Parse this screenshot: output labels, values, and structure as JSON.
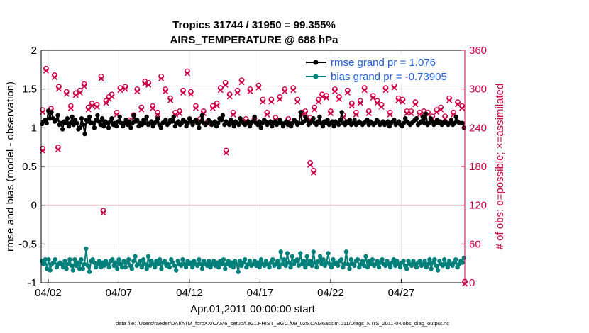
{
  "chart_data": {
    "type": "line",
    "title": "Tropics 31744 / 31950 = 99.355%",
    "subtitle": "AIRS_TEMPERATURE @ 688 hPa",
    "ylabel": "rmse and bias (model - observation)",
    "y2label": "# of obs: o=possible; ×=assimilated",
    "xlabel": "Apr.01,2011 00:00:00 start",
    "xlim": [
      1.5,
      31.5
    ],
    "ylim": [
      -1,
      2
    ],
    "y2lim": [
      0,
      360
    ],
    "x_ticks": [
      2,
      7,
      12,
      17,
      22,
      27
    ],
    "x_tick_labels": [
      "04/02",
      "04/07",
      "04/12",
      "04/17",
      "04/22",
      "04/27"
    ],
    "y_ticks": [
      -1,
      -0.5,
      0,
      0.5,
      1,
      1.5,
      2
    ],
    "y_tick_labels": [
      "-1",
      "-0.5",
      "0",
      "0.5",
      "1",
      "1.5",
      "2"
    ],
    "y2_ticks": [
      0,
      60,
      120,
      180,
      240,
      300,
      360
    ],
    "y2_tick_labels": [
      "0",
      "60",
      "120",
      "180",
      "240",
      "300",
      "360"
    ],
    "zero_line": 0,
    "legend": [
      {
        "label": "rmse grand pr = 1.076",
        "color": "#000000"
      },
      {
        "label": "bias grand pr = -0.73905",
        "color": "#00807a"
      }
    ],
    "series": [
      {
        "name": "rmse",
        "color": "#000000",
        "axis": "left",
        "values": [
          1.05,
          1.08,
          1.1,
          1.06,
          1.22,
          1.12,
          1.2,
          1.12,
          1.08,
          1.1,
          1.16,
          1.04,
          1.06,
          0.98,
          1.08,
          1.06,
          1.12,
          1.02,
          1.06,
          1.14,
          1.04,
          1.1,
          1.06,
          0.98,
          1.0,
          1.12,
          1.04,
          0.92,
          1.1,
          1.08,
          1.14,
          1.06,
          1.06,
          1.0,
          1.1,
          1.16,
          1.08,
          1.04,
          1.12,
          1.02,
          1.08,
          1.06,
          1.0,
          1.08,
          1.12,
          1.04,
          1.06,
          1.02,
          1.08,
          1.14,
          1.06,
          1.02,
          1.06,
          1.1,
          1.04,
          1.08,
          1.0,
          1.06,
          1.16,
          1.08,
          1.1,
          1.02,
          1.06,
          1.04,
          1.1,
          1.06,
          1.14,
          1.04,
          1.06,
          1.08,
          1.02,
          1.06,
          1.08,
          1.12,
          1.04,
          1.0,
          1.06,
          1.08,
          1.1,
          1.04,
          1.06,
          1.1,
          1.08,
          1.14,
          1.02,
          1.06,
          1.08,
          1.04,
          1.06,
          1.1,
          1.08,
          1.02,
          1.06,
          1.12,
          1.08,
          1.04,
          1.08,
          1.1,
          1.06,
          1.0,
          1.08,
          1.16,
          1.06,
          1.04,
          1.06,
          1.1,
          1.08,
          1.04,
          1.06,
          1.08,
          1.02,
          1.06,
          1.12,
          1.1,
          1.16,
          1.04,
          1.08,
          1.06,
          1.04,
          1.1,
          1.06,
          1.02,
          1.08,
          1.06,
          1.04,
          1.12,
          1.08,
          1.06,
          1.04,
          1.06,
          1.08,
          1.02,
          1.06,
          1.08,
          1.14,
          1.06,
          1.04,
          1.08,
          1.0,
          1.06,
          1.1,
          1.08,
          1.04,
          1.06,
          1.08,
          1.02,
          1.06,
          1.08,
          1.04,
          1.06,
          1.1,
          1.06,
          1.02,
          1.06,
          1.08,
          1.04,
          1.06,
          1.02,
          1.06,
          1.1,
          1.08,
          1.04,
          1.06,
          1.2,
          1.06,
          1.08,
          1.14,
          1.1,
          1.04,
          1.06,
          1.08,
          1.12,
          1.06,
          1.04,
          1.08,
          1.14,
          1.06,
          1.02,
          1.08,
          1.06,
          1.1,
          1.04,
          1.06,
          1.08,
          1.02,
          1.08,
          1.06,
          1.04,
          1.1,
          1.2,
          1.06,
          1.04,
          1.08,
          1.06,
          1.1,
          1.04,
          1.06,
          1.1,
          1.04,
          1.06,
          1.08,
          1.06,
          1.04,
          1.06,
          1.08,
          1.1,
          1.04,
          1.08,
          1.06,
          1.04,
          1.06,
          1.1,
          1.08,
          1.04,
          1.06,
          1.08,
          1.04,
          1.06,
          1.08,
          1.02,
          1.06,
          1.08,
          1.1,
          1.04,
          1.06,
          1.08,
          1.04,
          1.02,
          1.06,
          1.12,
          1.08,
          1.06,
          1.04,
          1.06,
          1.08,
          1.1,
          1.12,
          1.04,
          1.06,
          1.08,
          1.14,
          1.06,
          1.18,
          1.04,
          1.06,
          1.12,
          1.08,
          1.04,
          1.06,
          1.1,
          1.06,
          1.08,
          1.04,
          1.06,
          1.08,
          1.06,
          1.04,
          1.06,
          1.1,
          1.04,
          1.06,
          1.14,
          1.08,
          1.06,
          1.06,
          1.06,
          1.0
        ]
      },
      {
        "name": "bias",
        "color": "#00807a",
        "axis": "left",
        "values": [
          -0.72,
          -0.76,
          -0.7,
          -0.82,
          -0.7,
          -0.84,
          -0.76,
          -0.74,
          -0.7,
          -0.8,
          -0.76,
          -0.74,
          -0.76,
          -0.8,
          -0.72,
          -0.82,
          -0.76,
          -0.7,
          -0.78,
          -0.84,
          -0.7,
          -0.78,
          -0.74,
          -0.82,
          -0.7,
          -0.82,
          -0.76,
          -0.56,
          -0.78,
          -0.86,
          -0.72,
          -0.7,
          -0.74,
          -0.8,
          -0.76,
          -0.72,
          -0.8,
          -0.74,
          -0.78,
          -0.72,
          -0.76,
          -0.8,
          -0.72,
          -0.7,
          -0.78,
          -0.74,
          -0.82,
          -0.7,
          -0.76,
          -0.8,
          -0.72,
          -0.8,
          -0.74,
          -0.7,
          -0.78,
          -0.82,
          -0.72,
          -0.66,
          -0.78,
          -0.76,
          -0.72,
          -0.8,
          -0.7,
          -0.76,
          -0.82,
          -0.66,
          -0.78,
          -0.72,
          -0.76,
          -0.8,
          -0.72,
          -0.76,
          -0.7,
          -0.82,
          -0.74,
          -0.72,
          -0.78,
          -0.76,
          -0.8,
          -0.7,
          -0.74,
          -0.78,
          -0.84,
          -0.72,
          -0.76,
          -0.78,
          -0.7,
          -0.76,
          -0.8,
          -0.72,
          -0.76,
          -0.74,
          -0.8,
          -0.72,
          -0.76,
          -0.78,
          -0.7,
          -0.76,
          -0.82,
          -0.72,
          -0.76,
          -0.78,
          -0.72,
          -0.8,
          -0.76,
          -0.72,
          -0.78,
          -0.74,
          -0.8,
          -0.72,
          -0.76,
          -0.7,
          -0.82,
          -0.76,
          -0.72,
          -0.78,
          -0.74,
          -0.8,
          -0.72,
          -0.76,
          -0.86,
          -0.72,
          -0.78,
          -0.74,
          -0.7,
          -0.8,
          -0.76,
          -0.72,
          -0.78,
          -0.76,
          -0.72,
          -0.78,
          -0.74,
          -0.8,
          -0.7,
          -0.76,
          -0.78,
          -0.72,
          -0.76,
          -0.8,
          -0.74,
          -0.7,
          -0.78,
          -0.76,
          -0.72,
          -0.8,
          -0.6,
          -0.76,
          -0.7,
          -0.78,
          -0.62,
          -0.74,
          -0.8,
          -0.66,
          -0.76,
          -0.72,
          -0.7,
          -0.78,
          -0.62,
          -0.76,
          -0.72,
          -0.8,
          -0.66,
          -0.76,
          -0.72,
          -0.78,
          -0.6,
          -0.74,
          -0.8,
          -0.72,
          -0.66,
          -0.76,
          -0.7,
          -0.78,
          -0.74,
          -0.62,
          -0.76,
          -0.8,
          -0.7,
          -0.76,
          -0.74,
          -0.78,
          -0.72,
          -0.7,
          -0.8,
          -0.76,
          -0.6,
          -0.76,
          -0.82,
          -0.7,
          -0.76,
          -0.78,
          -0.72,
          -0.7,
          -0.8,
          -0.76,
          -0.72,
          -0.78,
          -0.66,
          -0.8,
          -0.72,
          -0.76,
          -0.7,
          -0.78,
          -0.76,
          -0.72,
          -0.8,
          -0.74,
          -0.7,
          -0.76,
          -0.78,
          -0.72,
          -0.76,
          -0.8,
          -0.74,
          -0.7,
          -0.78,
          -0.72,
          -0.76,
          -0.8,
          -0.74,
          -0.72,
          -0.78,
          -0.82,
          -0.72,
          -0.76,
          -0.78,
          -0.72,
          -0.76,
          -0.8,
          -0.74,
          -0.72,
          -0.78,
          -0.76,
          -0.72,
          -0.8,
          -0.76,
          -0.7,
          -0.82,
          -0.74,
          -0.7,
          -0.78,
          -0.84,
          -0.72,
          -0.76,
          -0.78,
          -0.7,
          -0.76,
          -0.8,
          -0.72,
          -0.76,
          -0.78,
          -0.74,
          -0.7,
          -0.8,
          -0.76,
          -0.72,
          -0.74,
          -0.68
        ]
      }
    ],
    "obs_counts": {
      "color": "#cc0044",
      "axis": "right",
      "x": [
        1.6,
        1.85,
        2.2,
        2.45,
        2.75,
        3.3,
        3.6,
        3.95,
        4.25,
        4.55,
        4.85,
        5.1,
        5.45,
        5.75,
        6.1,
        6.3,
        6.5,
        6.85,
        7.1,
        7.45,
        7.7,
        8.05,
        8.3,
        8.6,
        8.85,
        9.1,
        9.4,
        9.75,
        10.0,
        10.3,
        10.65,
        11.0,
        11.3,
        11.55,
        11.85,
        12.1,
        12.45,
        12.75,
        13.0,
        13.3,
        13.65,
        13.95,
        14.2,
        14.55,
        14.85,
        15.1,
        15.4,
        15.7,
        16.0,
        16.3,
        16.6,
        16.9,
        17.2,
        17.5,
        17.8,
        18.1,
        18.4,
        18.75,
        19.0,
        19.35,
        19.65,
        19.95,
        20.2,
        20.55,
        20.85,
        21.15,
        21.4,
        21.7,
        22.0,
        22.3,
        22.6,
        22.9,
        23.2,
        23.5,
        23.8,
        24.1,
        24.4,
        24.7,
        25.0,
        25.3,
        25.6,
        25.9,
        26.2,
        26.5,
        26.8,
        27.1,
        27.4,
        27.7,
        28.0,
        28.3,
        28.6,
        28.9,
        29.2,
        29.5,
        29.8,
        30.1,
        30.4,
        30.7,
        31.0,
        31.3
      ],
      "values": [
        266,
        330,
        268,
        320,
        302,
        294,
        272,
        292,
        296,
        306,
        270,
        276,
        274,
        318,
        280,
        286,
        290,
        262,
        300,
        302,
        250,
        258,
        298,
        270,
        310,
        308,
        272,
        262,
        318,
        298,
        284,
        262,
        264,
        296,
        326,
        294,
        272,
        252,
        264,
        248,
        272,
        276,
        300,
        308,
        290,
        262,
        296,
        312,
        252,
        298,
        252,
        304,
        282,
        262,
        282,
        254,
        286,
        298,
        252,
        300,
        282,
        262,
        264,
        254,
        270,
        282,
        290,
        288,
        264,
        298,
        286,
        258,
        296,
        276,
        262,
        280,
        300,
        264,
        288,
        280,
        274,
        300,
        262,
        304,
        284,
        282,
        264,
        264,
        278,
        262,
        264,
        262,
        256,
        266,
        270,
        256,
        284,
        262,
        278,
        272
      ],
      "outliers": [
        {
          "x": 1.6,
          "value": 206
        },
        {
          "x": 2.7,
          "value": 208
        },
        {
          "x": 5.9,
          "value": 110
        },
        {
          "x": 14.6,
          "value": 203
        },
        {
          "x": 20.55,
          "value": 184
        },
        {
          "x": 20.8,
          "value": 172
        },
        {
          "x": 31.5,
          "value": 0
        }
      ]
    },
    "footer": "data file: /Users/raeder/DAI/ATM_forcXX/CAM6_setup/f.e21.FHIST_BGC.f09_025.CAM6assim.011/Diags_NTrS_2011-04/obs_diag_output.nc"
  },
  "colors": {
    "rmse": "#000000",
    "bias": "#00807a",
    "obs": "#cc0044",
    "legend_text": "#1f5fd6"
  }
}
